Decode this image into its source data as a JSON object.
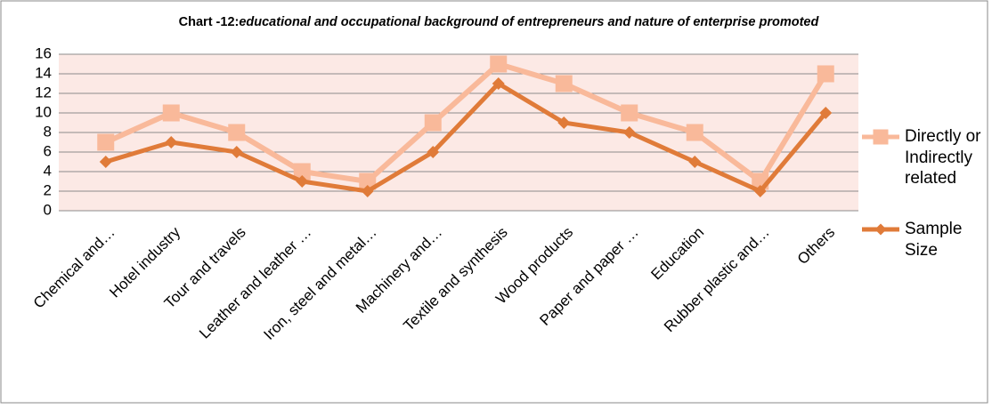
{
  "chart_data": {
    "type": "line",
    "title": [
      "Chart -12:",
      "educational and occupational background of entrepreneurs and nature of enterprise promoted"
    ],
    "categories": [
      "Chemical and…",
      "Hotel industry",
      "Tour and travels",
      "Leather and leather …",
      "Iron, steel and metal…",
      "Machinery and…",
      "Textile and synthesis",
      "Wood products",
      "Paper and paper …",
      "Education",
      "Rubber plastic and…",
      "Others"
    ],
    "series": [
      {
        "name": "Directly or Indirectly related",
        "color": "#f9b99a",
        "marker": "square",
        "values": [
          7,
          10,
          8,
          4,
          3,
          9,
          15,
          13,
          10,
          8,
          3,
          14
        ]
      },
      {
        "name": "Sample Size",
        "color": "#e07b39",
        "marker": "diamond",
        "values": [
          5,
          7,
          6,
          3,
          2,
          6,
          13,
          9,
          8,
          5,
          2,
          10
        ]
      }
    ],
    "ylim": [
      0,
      16
    ],
    "yticks": [
      0,
      2,
      4,
      6,
      8,
      10,
      12,
      14,
      16
    ],
    "grid": true,
    "legend": "right"
  }
}
